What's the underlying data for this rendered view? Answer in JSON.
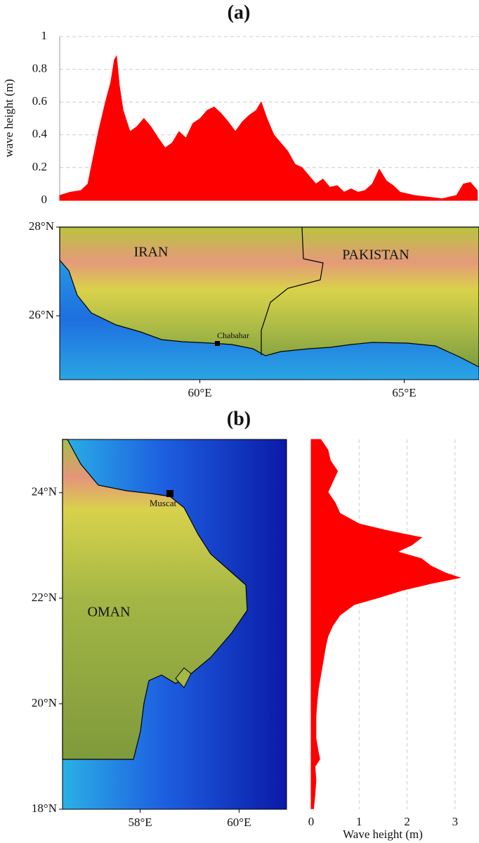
{
  "chart_data": [
    {
      "type": "area",
      "orientation": "vertical",
      "title": "(a)",
      "y_label": "wave height (m)",
      "color": "#ff0000",
      "grid": true,
      "xlim": [
        56.57,
        66.83
      ],
      "ylim": [
        0,
        1
      ],
      "yticks": [
        0,
        0.2,
        0.4,
        0.6,
        0.8,
        1
      ],
      "x": [
        56.57,
        56.83,
        57.09,
        57.26,
        57.34,
        57.52,
        57.69,
        57.82,
        57.91,
        57.96,
        58.03,
        58.12,
        58.29,
        58.46,
        58.63,
        58.8,
        58.98,
        59.15,
        59.32,
        59.49,
        59.66,
        59.83,
        60.01,
        60.18,
        60.35,
        60.52,
        60.69,
        60.87,
        61.04,
        61.21,
        61.38,
        61.5,
        61.64,
        61.81,
        61.98,
        62.15,
        62.33,
        62.5,
        62.67,
        62.84,
        63.01,
        63.18,
        63.36,
        63.53,
        63.7,
        63.87,
        64.04,
        64.22,
        64.39,
        64.56,
        64.73,
        64.9,
        65.25,
        65.59,
        65.93,
        66.28,
        66.45,
        66.62,
        66.79
      ],
      "values": [
        0.03,
        0.05,
        0.06,
        0.1,
        0.2,
        0.42,
        0.6,
        0.72,
        0.86,
        0.88,
        0.7,
        0.55,
        0.42,
        0.45,
        0.5,
        0.45,
        0.38,
        0.32,
        0.35,
        0.42,
        0.38,
        0.47,
        0.5,
        0.55,
        0.57,
        0.53,
        0.48,
        0.42,
        0.48,
        0.52,
        0.55,
        0.6,
        0.5,
        0.4,
        0.35,
        0.3,
        0.22,
        0.2,
        0.15,
        0.1,
        0.13,
        0.08,
        0.09,
        0.05,
        0.07,
        0.05,
        0.06,
        0.1,
        0.19,
        0.12,
        0.09,
        0.05,
        0.03,
        0.02,
        0.01,
        0.03,
        0.1,
        0.11,
        0.06
      ]
    },
    {
      "type": "area",
      "orientation": "horizontal",
      "title": "(b)",
      "x_label": "Wave height (m)",
      "color": "#ff0000",
      "grid": true,
      "xlim": [
        0,
        3.5
      ],
      "xticks": [
        0,
        1,
        2,
        3
      ],
      "ylim": [
        18,
        25.01
      ],
      "y": [
        25.01,
        24.81,
        24.61,
        24.41,
        24.21,
        24.01,
        23.81,
        23.61,
        23.41,
        23.28,
        23.15,
        23.01,
        22.88,
        22.75,
        22.61,
        22.48,
        22.39,
        22.28,
        22.15,
        22.01,
        21.88,
        21.68,
        21.48,
        21.28,
        21.08,
        20.81,
        20.55,
        20.28,
        20.01,
        19.75,
        19.35,
        19.08,
        18.95,
        18.81,
        18.55,
        18.28,
        18.01
      ],
      "values": [
        0.2,
        0.35,
        0.4,
        0.55,
        0.45,
        0.35,
        0.5,
        0.6,
        1.0,
        1.6,
        2.3,
        2.1,
        1.8,
        2.3,
        2.5,
        2.8,
        3.1,
        2.5,
        1.9,
        1.4,
        0.9,
        0.6,
        0.45,
        0.35,
        0.3,
        0.25,
        0.2,
        0.15,
        0.12,
        0.1,
        0.1,
        0.15,
        0.18,
        0.08,
        0.1,
        0.08,
        0.05
      ]
    }
  ],
  "maps": [
    {
      "xlim": [
        56.57,
        66.83
      ],
      "ylim": [
        24.56,
        28
      ],
      "xticks": [
        {
          "value": 60,
          "label": "60°E"
        },
        {
          "value": 65,
          "label": "65°E"
        }
      ],
      "yticks": [
        {
          "value": 26,
          "label": "26°N"
        },
        {
          "value": 28,
          "label": "28°N"
        }
      ],
      "labels": [
        "IRAN",
        "PAKISTAN",
        "Chabahar"
      ]
    },
    {
      "xlim": [
        56.43,
        60.96
      ],
      "ylim": [
        18,
        25.01
      ],
      "xticks": [
        {
          "value": 58,
          "label": "58°E"
        },
        {
          "value": 60,
          "label": "60°E"
        }
      ],
      "yticks": [
        {
          "value": 18,
          "label": "18°N"
        },
        {
          "value": 20,
          "label": "20°N"
        },
        {
          "value": 22,
          "label": "22°N"
        },
        {
          "value": 24,
          "label": "24°N"
        }
      ],
      "labels": [
        "OMAN",
        "Muscat"
      ]
    }
  ]
}
